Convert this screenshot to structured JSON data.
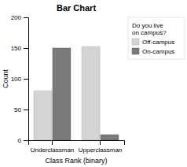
{
  "chart_data": {
    "type": "bar",
    "title": "Bar Chart",
    "xlabel": "Class Rank (binary)",
    "ylabel": "Count",
    "categories": [
      "Underclassman",
      "Upperclassman"
    ],
    "series": [
      {
        "name": "Off-campus",
        "color": "#d4d4d4",
        "values": [
          80,
          152
        ]
      },
      {
        "name": "On-campus",
        "color": "#7a7a7a",
        "values": [
          150,
          9
        ]
      }
    ],
    "ylim": [
      0,
      200
    ],
    "yticks": [
      0,
      50,
      100,
      150,
      200
    ],
    "legend_title": "Do you live\non campus?",
    "legend": "right",
    "grid": false
  }
}
